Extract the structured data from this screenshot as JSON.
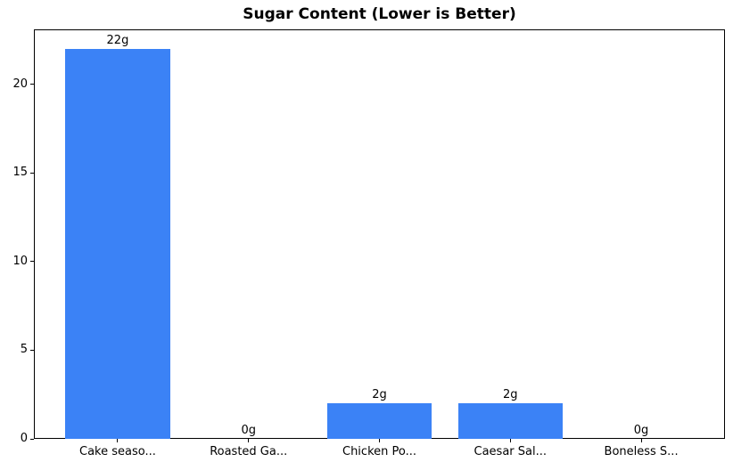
{
  "chart_data": {
    "type": "bar",
    "title": "Sugar Content (Lower is Better)",
    "categories": [
      "Cake seaso...",
      "Roasted Ga...",
      "Chicken Po...",
      "Caesar Sal...",
      "Boneless S..."
    ],
    "values": [
      22,
      0,
      2,
      2,
      0
    ],
    "value_labels": [
      "22g",
      "0g",
      "2g",
      "2g",
      "0g"
    ],
    "yticks": [
      0,
      5,
      10,
      15,
      20
    ],
    "ylim": [
      0,
      23.1
    ],
    "xlim": [
      -0.64,
      4.64
    ],
    "bar_width_units": 0.8,
    "bar_color": "#3b82f6",
    "xlabel": "",
    "ylabel": "",
    "grid": false,
    "legend_position": "none"
  }
}
